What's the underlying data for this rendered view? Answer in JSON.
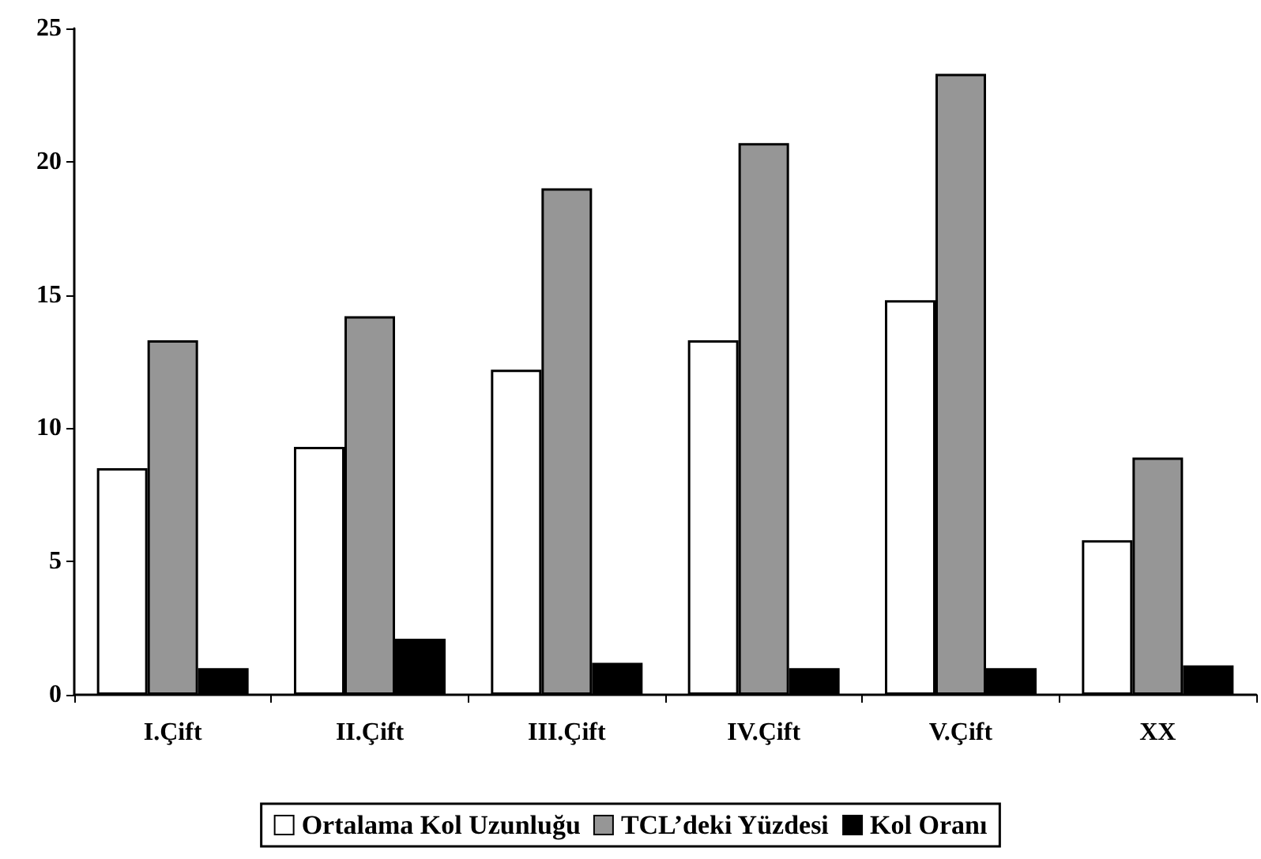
{
  "chart_data": {
    "type": "bar",
    "categories": [
      "I.Çift",
      "II.Çift",
      "III.Çift",
      "IV.Çift",
      "V.Çift",
      "XX"
    ],
    "series": [
      {
        "name": "Ortalama Kol Uzunluğu",
        "color": "#ffffff",
        "values": [
          8.5,
          9.3,
          12.2,
          13.3,
          14.8,
          5.8
        ]
      },
      {
        "name": "TCL’deki Yüzdesi",
        "color": "#969696",
        "values": [
          13.3,
          14.2,
          19.0,
          20.7,
          23.3,
          8.9
        ]
      },
      {
        "name": "Kol Oranı",
        "color": "#000000",
        "values": [
          1.0,
          2.1,
          1.2,
          1.0,
          1.0,
          1.1
        ]
      }
    ],
    "ylim": [
      0,
      25
    ],
    "yticks": [
      0,
      5,
      10,
      15,
      20,
      25
    ],
    "grid": false,
    "legend": "bottom"
  }
}
